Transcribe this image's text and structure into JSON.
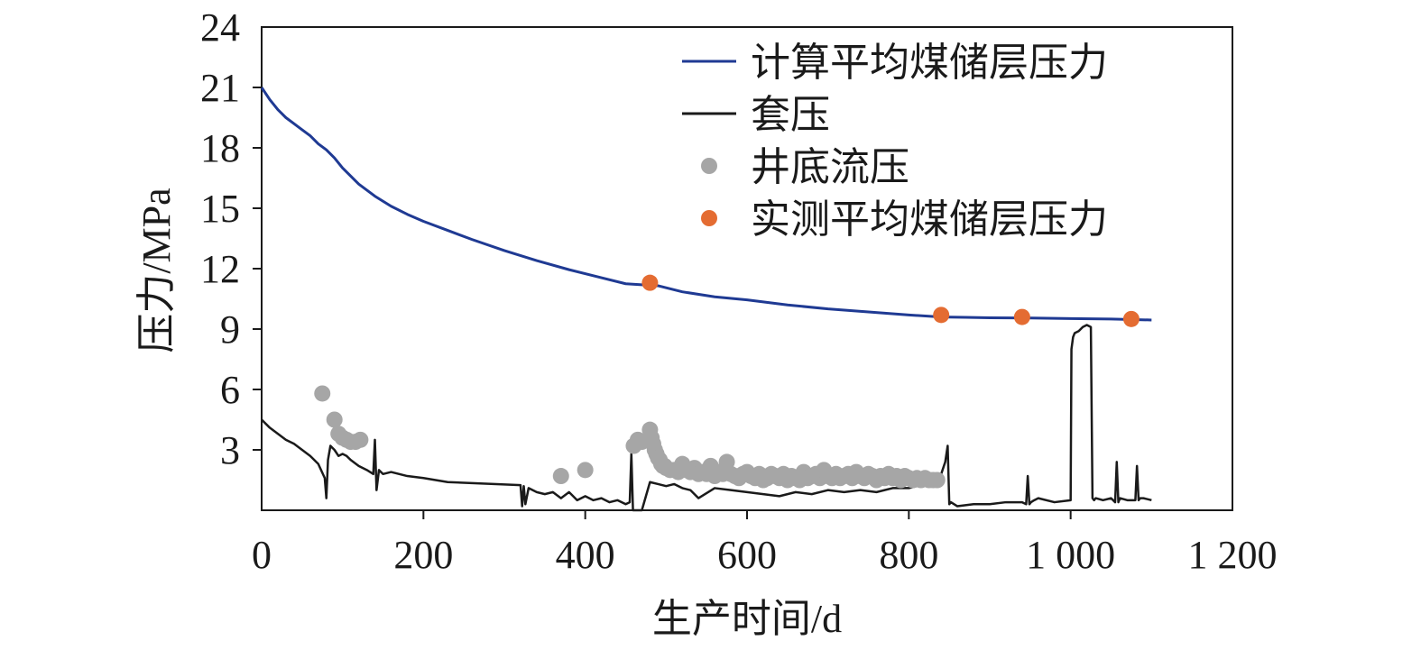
{
  "chart_data": {
    "type": "line",
    "xlabel": "生产时间/d",
    "ylabel": "压力/MPa",
    "xlim": [
      0,
      1200
    ],
    "ylim": [
      0,
      24
    ],
    "x_ticks": [
      {
        "value": 0,
        "label": "0"
      },
      {
        "value": 200,
        "label": "200"
      },
      {
        "value": 400,
        "label": "400"
      },
      {
        "value": 600,
        "label": "600"
      },
      {
        "value": 800,
        "label": "800"
      },
      {
        "value": 1000,
        "label": "1 000"
      },
      {
        "value": 1200,
        "label": "1 200"
      }
    ],
    "y_ticks": [
      {
        "value": 3,
        "label": "3"
      },
      {
        "value": 6,
        "label": "6"
      },
      {
        "value": 9,
        "label": "9"
      },
      {
        "value": 12,
        "label": "12"
      },
      {
        "value": 15,
        "label": "15"
      },
      {
        "value": 18,
        "label": "18"
      },
      {
        "value": 21,
        "label": "21"
      },
      {
        "value": 24,
        "label": "24"
      }
    ],
    "grid": false,
    "legend_position": "top-right",
    "series": [
      {
        "name": "计算平均煤储层压力",
        "kind": "line",
        "color": "#1f3a93",
        "x": [
          0,
          10,
          20,
          30,
          40,
          50,
          60,
          70,
          80,
          90,
          100,
          120,
          140,
          160,
          180,
          200,
          230,
          260,
          300,
          340,
          380,
          420,
          450,
          470,
          490,
          520,
          560,
          600,
          650,
          700,
          750,
          800,
          840,
          870,
          900,
          950,
          1000,
          1050,
          1100
        ],
        "y": [
          21.0,
          20.4,
          19.9,
          19.5,
          19.2,
          18.9,
          18.6,
          18.2,
          17.9,
          17.5,
          17.0,
          16.2,
          15.6,
          15.1,
          14.7,
          14.35,
          13.9,
          13.45,
          12.9,
          12.4,
          11.95,
          11.55,
          11.25,
          11.2,
          11.15,
          10.85,
          10.6,
          10.45,
          10.2,
          10.0,
          9.85,
          9.7,
          9.6,
          9.58,
          9.56,
          9.55,
          9.52,
          9.5,
          9.45
        ]
      },
      {
        "name": "套压",
        "kind": "line",
        "color": "#1a1a1a",
        "x": [
          0,
          10,
          20,
          30,
          40,
          50,
          60,
          70,
          78,
          80,
          82,
          85,
          90,
          95,
          100,
          105,
          110,
          120,
          130,
          138,
          140,
          142,
          145,
          150,
          160,
          180,
          200,
          230,
          260,
          290,
          320,
          322,
          324,
          326,
          330,
          340,
          350,
          360,
          370,
          380,
          390,
          400,
          410,
          420,
          430,
          440,
          450,
          455,
          457,
          459,
          461,
          465,
          470,
          480,
          490,
          500,
          510,
          520,
          530,
          540,
          560,
          580,
          600,
          620,
          640,
          660,
          680,
          700,
          720,
          740,
          760,
          780,
          800,
          810,
          820,
          830,
          840,
          845,
          848,
          850,
          852,
          856,
          860,
          880,
          900,
          920,
          940,
          945,
          947,
          949,
          951,
          955,
          960,
          980,
          1000,
          1001,
          1003,
          1005,
          1010,
          1015,
          1020,
          1025,
          1027,
          1029,
          1031,
          1040,
          1050,
          1055,
          1057,
          1059,
          1061,
          1070,
          1080,
          1082,
          1084,
          1086,
          1090,
          1100
        ],
        "y": [
          4.5,
          4.1,
          3.8,
          3.5,
          3.3,
          3.0,
          2.7,
          2.3,
          1.6,
          0.6,
          2.5,
          3.2,
          3.0,
          2.7,
          2.8,
          2.7,
          2.5,
          2.2,
          2.0,
          1.8,
          3.5,
          1.0,
          2.0,
          1.8,
          1.9,
          1.7,
          1.6,
          1.4,
          1.35,
          1.3,
          1.25,
          0.2,
          1.2,
          0.3,
          1.1,
          0.9,
          0.8,
          0.9,
          0.6,
          0.9,
          0.5,
          0.7,
          0.5,
          0.6,
          0.4,
          0.5,
          0.3,
          0.4,
          2.8,
          0.0,
          0.0,
          0.0,
          0.0,
          1.4,
          1.3,
          1.2,
          1.3,
          1.1,
          1.0,
          0.6,
          1.1,
          1.0,
          0.9,
          0.8,
          0.7,
          0.9,
          0.8,
          1.0,
          0.9,
          1.0,
          0.9,
          1.1,
          1.1,
          1.2,
          1.3,
          1.5,
          1.8,
          2.4,
          3.2,
          0.3,
          0.4,
          0.3,
          0.2,
          0.3,
          0.3,
          0.4,
          0.4,
          0.3,
          1.7,
          0.3,
          0.4,
          0.5,
          0.6,
          0.4,
          0.5,
          8.0,
          8.6,
          8.8,
          8.9,
          9.1,
          9.2,
          9.1,
          0.6,
          0.5,
          0.6,
          0.5,
          0.6,
          0.4,
          2.4,
          0.4,
          0.6,
          0.5,
          0.5,
          2.2,
          0.5,
          0.6,
          0.6,
          0.5
        ]
      },
      {
        "name": "井底流压",
        "kind": "scatter",
        "color": "#a6a6a6",
        "x": [
          75,
          90,
          95,
          100,
          105,
          110,
          116,
          122,
          370,
          400,
          460,
          465,
          470,
          480,
          482,
          484,
          486,
          488,
          490,
          492,
          494,
          496,
          498,
          500,
          505,
          510,
          515,
          520,
          525,
          530,
          535,
          540,
          545,
          550,
          555,
          560,
          565,
          570,
          575,
          580,
          585,
          590,
          595,
          600,
          605,
          610,
          615,
          620,
          625,
          630,
          635,
          640,
          645,
          650,
          655,
          660,
          665,
          670,
          675,
          680,
          685,
          690,
          695,
          700,
          705,
          710,
          715,
          720,
          725,
          730,
          735,
          740,
          745,
          750,
          755,
          760,
          765,
          770,
          775,
          780,
          785,
          790,
          795,
          800,
          805,
          810,
          815,
          820,
          825,
          830,
          835
        ],
        "y": [
          5.8,
          4.5,
          3.8,
          3.6,
          3.5,
          3.4,
          3.4,
          3.5,
          1.7,
          2.0,
          3.2,
          3.5,
          3.4,
          4.0,
          3.6,
          3.3,
          3.0,
          2.8,
          2.6,
          2.5,
          2.3,
          2.2,
          2.2,
          2.1,
          2.0,
          2.0,
          1.9,
          2.3,
          2.0,
          1.9,
          2.1,
          1.8,
          1.9,
          1.8,
          2.2,
          1.7,
          1.9,
          1.8,
          2.4,
          1.8,
          1.7,
          1.6,
          1.8,
          1.9,
          1.7,
          1.6,
          1.8,
          1.5,
          1.6,
          1.8,
          1.7,
          1.6,
          1.8,
          1.5,
          1.7,
          1.6,
          1.5,
          1.9,
          1.6,
          1.7,
          1.8,
          1.6,
          2.0,
          1.7,
          1.6,
          1.8,
          1.6,
          1.7,
          1.8,
          1.6,
          1.9,
          1.7,
          1.6,
          1.8,
          1.7,
          1.5,
          1.7,
          1.6,
          1.8,
          1.6,
          1.7,
          1.5,
          1.7,
          1.6,
          1.5,
          1.6,
          1.5,
          1.6,
          1.5,
          1.5,
          1.5
        ]
      },
      {
        "name": "实测平均煤储层压力",
        "kind": "scatter",
        "color": "#e46c32",
        "x": [
          480,
          840,
          940,
          1075
        ],
        "y": [
          11.3,
          9.7,
          9.6,
          9.5
        ]
      }
    ]
  }
}
